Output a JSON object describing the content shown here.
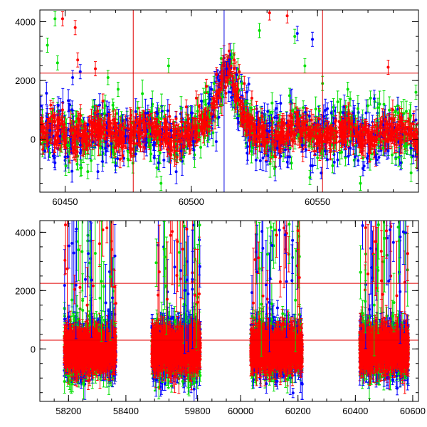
{
  "chart_data": [
    {
      "type": "scatter",
      "panel": "top",
      "title": "",
      "xlabel": "",
      "ylabel": "",
      "xlim": [
        60440,
        60590
      ],
      "ylim": [
        -1800,
        4400
      ],
      "xticks": [
        {
          "value": 60450,
          "label": "60450"
        },
        {
          "value": 60500,
          "label": "60500"
        },
        {
          "value": 60550,
          "label": "60550"
        }
      ],
      "yticks": [
        {
          "value": 0,
          "label": "0"
        },
        {
          "value": 2000,
          "label": "2000"
        },
        {
          "value": 4000,
          "label": "4000"
        }
      ],
      "hlines": [
        {
          "y": 2250,
          "color": "#e00000"
        }
      ],
      "vlines": [
        {
          "x": 60477,
          "color": "#e00000"
        },
        {
          "x": 60513,
          "color": "#0000e0"
        },
        {
          "x": 60552,
          "color": "#e00000"
        }
      ],
      "colors": {
        "red": "#ff0000",
        "green": "#00e000",
        "blue": "#0000ff",
        "line_red": "#e00000"
      },
      "series": [
        {
          "color": "#ff0000",
          "points": [
            [
              60441,
              500
            ],
            [
              60443,
              -200
            ],
            [
              60445,
              800
            ],
            [
              60447,
              200
            ],
            [
              60449,
              1000
            ],
            [
              60452,
              300
            ],
            [
              60455,
              700
            ],
            [
              60458,
              -100
            ],
            [
              60462,
              900
            ],
            [
              60465,
              1300
            ],
            [
              60468,
              400
            ],
            [
              60472,
              200
            ],
            [
              60476,
              -300
            ],
            [
              60480,
              600
            ],
            [
              60485,
              200
            ],
            [
              60490,
              400
            ],
            [
              60494,
              700
            ],
            [
              60498,
              1100
            ],
            [
              60502,
              1400
            ],
            [
              60506,
              1800
            ],
            [
              60510,
              2200
            ],
            [
              60513,
              2600
            ],
            [
              60515,
              3000
            ],
            [
              60517,
              2700
            ],
            [
              60519,
              2300
            ],
            [
              60521,
              1900
            ],
            [
              60524,
              1400
            ],
            [
              60528,
              800
            ],
            [
              60532,
              400
            ],
            [
              60536,
              200
            ],
            [
              60540,
              600
            ],
            [
              60545,
              300
            ],
            [
              60550,
              500
            ],
            [
              60555,
              200
            ],
            [
              60560,
              400
            ],
            [
              60565,
              100
            ],
            [
              60570,
              300
            ],
            [
              60575,
              500
            ],
            [
              60580,
              200
            ],
            [
              60585,
              400
            ],
            [
              60588,
              100
            ],
            [
              60449,
              4100
            ],
            [
              60454,
              3800
            ],
            [
              60531,
              4300
            ],
            [
              60538,
              4200
            ],
            [
              60578,
              2450
            ],
            [
              60455,
              2700
            ],
            [
              60462,
              2400
            ]
          ]
        },
        {
          "color": "#0000ff",
          "points": [
            [
              60442,
              -400
            ],
            [
              60444,
              300
            ],
            [
              60446,
              -800
            ],
            [
              60448,
              100
            ],
            [
              60450,
              -600
            ],
            [
              60453,
              2100
            ],
            [
              60456,
              -200
            ],
            [
              60459,
              500
            ],
            [
              60463,
              -1100
            ],
            [
              60466,
              -300
            ],
            [
              60470,
              -900
            ],
            [
              60474,
              100
            ],
            [
              60478,
              -500
            ],
            [
              60482,
              -200
            ],
            [
              60487,
              -800
            ],
            [
              60492,
              300
            ],
            [
              60496,
              -400
            ],
            [
              60500,
              900
            ],
            [
              60504,
              1300
            ],
            [
              60508,
              1700
            ],
            [
              60511,
              2000
            ],
            [
              60514,
              2400
            ],
            [
              60518,
              2200
            ],
            [
              60522,
              1600
            ],
            [
              60526,
              900
            ],
            [
              60530,
              300
            ],
            [
              60534,
              -300
            ],
            [
              60539,
              -600
            ],
            [
              60544,
              -200
            ],
            [
              60548,
              -900
            ],
            [
              60553,
              -400
            ],
            [
              60558,
              -700
            ],
            [
              60563,
              -300
            ],
            [
              60568,
              -1000
            ],
            [
              60573,
              -600
            ],
            [
              60578,
              -400
            ],
            [
              60583,
              -800
            ],
            [
              60587,
              -300
            ],
            [
              60542,
              3600
            ],
            [
              60548,
              3400
            ],
            [
              60456,
              2300
            ]
          ]
        },
        {
          "color": "#00e000",
          "points": [
            [
              60443,
              3200
            ],
            [
              60446,
              4100
            ],
            [
              60447,
              2600
            ],
            [
              60451,
              -200
            ],
            [
              60457,
              600
            ],
            [
              60461,
              1100
            ],
            [
              60464,
              -300
            ],
            [
              60467,
              2100
            ],
            [
              60471,
              1700
            ],
            [
              60475,
              -700
            ],
            [
              60484,
              -500
            ],
            [
              60491,
              2500
            ],
            [
              60497,
              -600
            ],
            [
              60503,
              300
            ],
            [
              60509,
              1900
            ],
            [
              60516,
              2800
            ],
            [
              60520,
              1900
            ],
            [
              60527,
              3700
            ],
            [
              60533,
              -1000
            ],
            [
              60541,
              3500
            ],
            [
              60547,
              -1300
            ],
            [
              60552,
              1900
            ],
            [
              60556,
              -900
            ],
            [
              60562,
              1700
            ],
            [
              60567,
              -1500
            ],
            [
              60571,
              1400
            ],
            [
              60576,
              -300
            ],
            [
              60582,
              900
            ],
            [
              60589,
              1600
            ],
            [
              60545,
              2500
            ],
            [
              60488,
              -1500
            ],
            [
              60459,
              -1100
            ]
          ]
        }
      ]
    },
    {
      "type": "scatter",
      "panel": "bottom",
      "title": "",
      "xlabel": "",
      "ylabel": "",
      "ylim": [
        -1800,
        4400
      ],
      "segments": [
        {
          "xlim": [
            58100,
            58450
          ],
          "xticks": [
            {
              "value": 58200,
              "label": "58200"
            },
            {
              "value": 58400,
              "label": "58400"
            }
          ],
          "center": 58275,
          "spread": 90
        },
        {
          "xlim": [
            59600,
            59900
          ],
          "xticks": [
            {
              "value": 59800,
              "label": "59800"
            }
          ],
          "center": 59725,
          "spread": 85
        },
        {
          "xlim": [
            59950,
            60300
          ],
          "xticks": [
            {
              "value": 60000,
              "label": "60000"
            },
            {
              "value": 60200,
              "label": "60200"
            }
          ],
          "center": 60125,
          "spread": 90
        },
        {
          "xlim": [
            60300,
            60620
          ],
          "xticks": [
            {
              "value": 60400,
              "label": "60400"
            },
            {
              "value": 60600,
              "label": "60600"
            }
          ],
          "center": 60500,
          "spread": 85
        }
      ],
      "yticks": [
        {
          "value": 0,
          "label": "0"
        },
        {
          "value": 2000,
          "label": "2000"
        },
        {
          "value": 4000,
          "label": "4000"
        }
      ],
      "hlines": [
        {
          "y": 2250,
          "color": "#e00000"
        },
        {
          "y": 300,
          "color": "#e00000"
        }
      ],
      "colors": {
        "red": "#ff0000",
        "green": "#00e000",
        "blue": "#0000ff",
        "line_red": "#e00000"
      }
    }
  ]
}
